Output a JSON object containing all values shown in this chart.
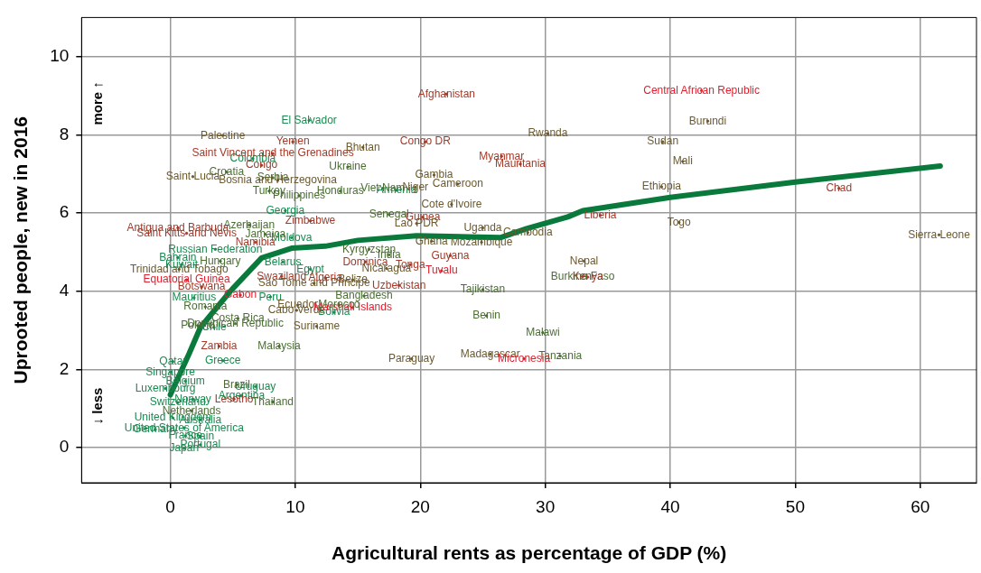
{
  "chart_data": {
    "type": "scatter",
    "xlabel": "Agricultural rents as percentage of GDP (%)",
    "ylabel": "Uprooted people, new in 2016",
    "xlim": [
      -7.1,
      64.5
    ],
    "ylim": [
      -0.9,
      11
    ],
    "xticks": [
      0,
      10,
      20,
      30,
      40,
      50,
      60
    ],
    "yticks": [
      0,
      2,
      4,
      6,
      8,
      10
    ],
    "grid": true,
    "legend": false,
    "annotations": [
      "more ↑",
      "↓ less"
    ],
    "series": [
      {
        "color": "#1a8a50",
        "x": [
          11.1,
          6.6,
          9.2,
          3.6,
          9.0,
          11.2,
          13.1,
          0.6,
          0.9,
          1.9,
          8.0,
          3.5,
          0.2,
          4.2,
          0,
          1.2,
          -0.4,
          6.8,
          1.8,
          5.7,
          0.6,
          0.2,
          2.4,
          1.1,
          -1.2,
          1.2,
          2.4,
          2.4,
          1.1,
          18.1,
          9.7
        ],
        "values": [
          8.37,
          7.39,
          6.06,
          5.07,
          4.75,
          4.56,
          3.46,
          4.86,
          4.68,
          3.83,
          3.85,
          3.07,
          2.2,
          2.22,
          1.93,
          1.7,
          1.51,
          1.56,
          1.24,
          1.33,
          1.15,
          0.76,
          0.71,
          0.5,
          0.46,
          0.3,
          0.28,
          0.07,
          -0.02,
          6.58,
          5.37
        ],
        "value_labels": [
          "El Salvador",
          "Colombia",
          "Georgia",
          "Russian Federation",
          "Belarus",
          "Egypt",
          "Bolivia",
          "Bahrain",
          "Kuwait",
          "Mauritius",
          "Peru",
          "Chile",
          "Qatar",
          "Greece",
          "Singapore",
          "Belgium",
          "Luxembourg",
          "Uruguay",
          "Norway",
          "Argentina",
          "Switzerland",
          "United Kingdom",
          "Australia",
          "United States of America",
          "Germany",
          "France",
          "Spain",
          "Portugal",
          "Japan",
          "Armenia",
          "Moldova"
        ]
      },
      {
        "color": "#4a6e32",
        "x": [
          14.2,
          4.5,
          8.2,
          7.9,
          10.3,
          13.6,
          17.0,
          17.5,
          6.3,
          7.6,
          15.9,
          17.5,
          33.0,
          4.0,
          25.0,
          15.5,
          2.8,
          13.5,
          5.4,
          5.2,
          2.2,
          25.3,
          29.8,
          8.7,
          31.2,
          5.3,
          8.2,
          1.7
        ],
        "values": [
          7.18,
          7.05,
          6.9,
          6.56,
          6.44,
          6.56,
          6.63,
          5.96,
          5.69,
          5.46,
          5.07,
          4.93,
          4.38,
          4.77,
          4.04,
          3.88,
          3.6,
          3.65,
          3.3,
          3.17,
          3.12,
          3.37,
          2.94,
          2.59,
          2.34,
          1.61,
          1.17,
          0.94
        ],
        "value_labels": [
          "Ukraine",
          "Croatia",
          "Serbia",
          "Turkey",
          "Philippines",
          "Honduras",
          "Viet Nam",
          "Senegal",
          "Azerbaijan",
          "Jamaica",
          "Kyrgyzstan",
          "India",
          "Burkina Faso",
          "Hungary",
          "Tajikistan",
          "Bangladesh",
          "Romania",
          "Morocco",
          "Costa Rica",
          "Dominican Republic",
          "Poland",
          "Benin",
          "Malawi",
          "Malaysia",
          "Tanzania",
          "Brazil",
          "Thailand",
          "Netherlands"
        ]
      },
      {
        "color": "#6b5a30",
        "x": [
          43.0,
          4.2,
          15.4,
          30.2,
          39.4,
          41.0,
          1.8,
          8.6,
          21.1,
          19.6,
          23.0,
          39.3,
          22.5,
          19.7,
          40.7,
          25.0,
          28.6,
          20.9,
          24.9,
          61.5,
          17.3,
          33.1,
          0.7,
          14.6,
          11.5,
          10.2,
          10.1,
          11.7,
          19.3,
          25.6
        ],
        "values": [
          8.35,
          7.98,
          7.68,
          8.03,
          7.82,
          7.32,
          6.93,
          6.83,
          6.97,
          6.66,
          6.74,
          6.67,
          6.22,
          5.73,
          5.76,
          5.62,
          5.5,
          5.28,
          5.25,
          5.44,
          4.58,
          4.77,
          4.56,
          4.29,
          4.2,
          3.65,
          3.51,
          3.1,
          2.27,
          2.39
        ],
        "value_labels": [
          "Burundi",
          "Palestine",
          "Bhutan",
          "Rwanda",
          "Sudan",
          "Mali",
          "Saint Lucia",
          "Bosnia and Herzegovina",
          "Gambia",
          "Niger",
          "Cameroon",
          "Ethiopia",
          "Cote d'Ivoire",
          "Lao PDR",
          "Togo",
          "Uganda",
          "Cambodia",
          "Ghana",
          "Mozambique",
          "Sierra Leone",
          "Nicaragua",
          "Nepal",
          "Trinidad and Tobago",
          "Belize",
          "Sao Tome and Principe",
          "Ecuador",
          "Cabo Verde",
          "Suriname",
          "Paraguay",
          "Madagascar"
        ]
      },
      {
        "color": "#a33a2a",
        "x": [
          22.1,
          9.8,
          20.4,
          8.2,
          26.5,
          28.0,
          7.3,
          53.5,
          20.2,
          34.4,
          11.2,
          0.6,
          1.3,
          6.8,
          22.4,
          15.6,
          19.2,
          33.4,
          8.9,
          12.4,
          18.3,
          2.5,
          3.9,
          5.1
        ],
        "values": [
          9.04,
          7.82,
          7.82,
          7.52,
          7.45,
          7.25,
          7.22,
          6.63,
          5.89,
          5.94,
          5.8,
          5.62,
          5.48,
          5.25,
          4.91,
          4.75,
          4.68,
          4.36,
          4.38,
          4.34,
          4.15,
          4.11,
          2.59,
          1.24
        ],
        "value_labels": [
          "Afghanistan",
          "Yemen",
          "Congo DR",
          "Saint Vincent and the Grenadines",
          "Myanmar",
          "Mauritania",
          "Congo",
          "Chad",
          "Guinea",
          "Liberia",
          "Zimbabwe",
          "Antigua and Barbuda",
          "Saint Kitts and Nevis",
          "Namibia",
          "Guyana",
          "Dominica",
          "Tonga",
          "Kenya",
          "Swaziland",
          "Algeria",
          "Uzbekistan",
          "Botswana",
          "Zambia",
          "Lesotho"
        ]
      },
      {
        "color": "#e0202e",
        "x": [
          42.5,
          21.7,
          1.3,
          5.6,
          14.6,
          28.3
        ],
        "values": [
          9.13,
          4.52,
          4.29,
          3.9,
          3.58,
          2.27
        ],
        "value_labels": [
          "Central African Republic",
          "Tuvalu",
          "Equatorial Guinea",
          "Gabon",
          "Marshall Islands",
          "Micronesia"
        ]
      },
      {
        "type": "line",
        "color": "#0a7a3c",
        "x": [
          0,
          1.5,
          2.4,
          4.8,
          7.3,
          9.7,
          12.4,
          15,
          19.7,
          26.4,
          28.5,
          31.8,
          33,
          40,
          50,
          61.6
        ],
        "values": [
          1.35,
          2.4,
          3.07,
          4.0,
          4.85,
          5.1,
          5.15,
          5.3,
          5.42,
          5.37,
          5.6,
          5.9,
          6.06,
          6.4,
          6.79,
          7.2
        ]
      }
    ]
  }
}
